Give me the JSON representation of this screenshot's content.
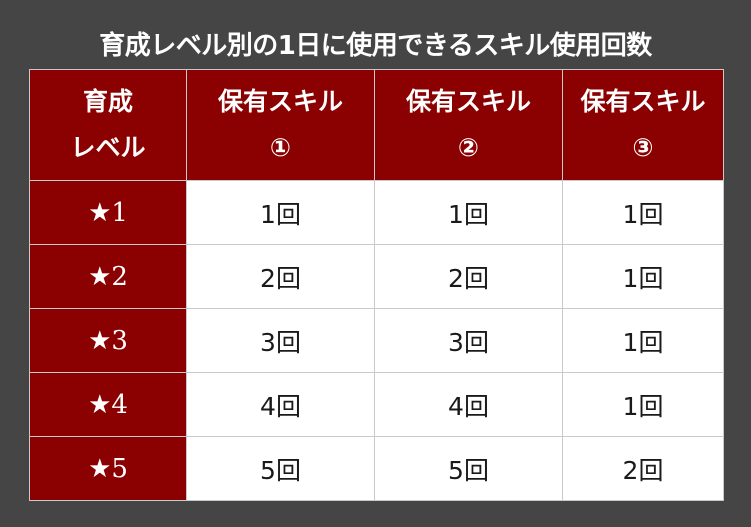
{
  "title": "育成レベル別の1日に使用できるスキル使用回数",
  "table": {
    "headers": [
      {
        "line1": "育成",
        "line2": "レベル"
      },
      {
        "line1": "保有スキル",
        "line2": "①"
      },
      {
        "line1": "保有スキル",
        "line2": "②"
      },
      {
        "line1": "保有スキル",
        "line2": "③"
      }
    ],
    "rows": [
      {
        "level": "★1",
        "skill1": "1回",
        "skill2": "1回",
        "skill3": "1回"
      },
      {
        "level": "★2",
        "skill1": "2回",
        "skill2": "2回",
        "skill3": "1回"
      },
      {
        "level": "★3",
        "skill1": "3回",
        "skill2": "3回",
        "skill3": "1回"
      },
      {
        "level": "★4",
        "skill1": "4回",
        "skill2": "4回",
        "skill3": "1回"
      },
      {
        "level": "★5",
        "skill1": "5回",
        "skill2": "5回",
        "skill3": "2回"
      }
    ]
  },
  "colors": {
    "background": "#454545",
    "header_fill": "#8b0000",
    "cell_fill": "#ffffff",
    "text_on_header": "#ffffff",
    "text_on_cell": "#1a1a1a"
  }
}
